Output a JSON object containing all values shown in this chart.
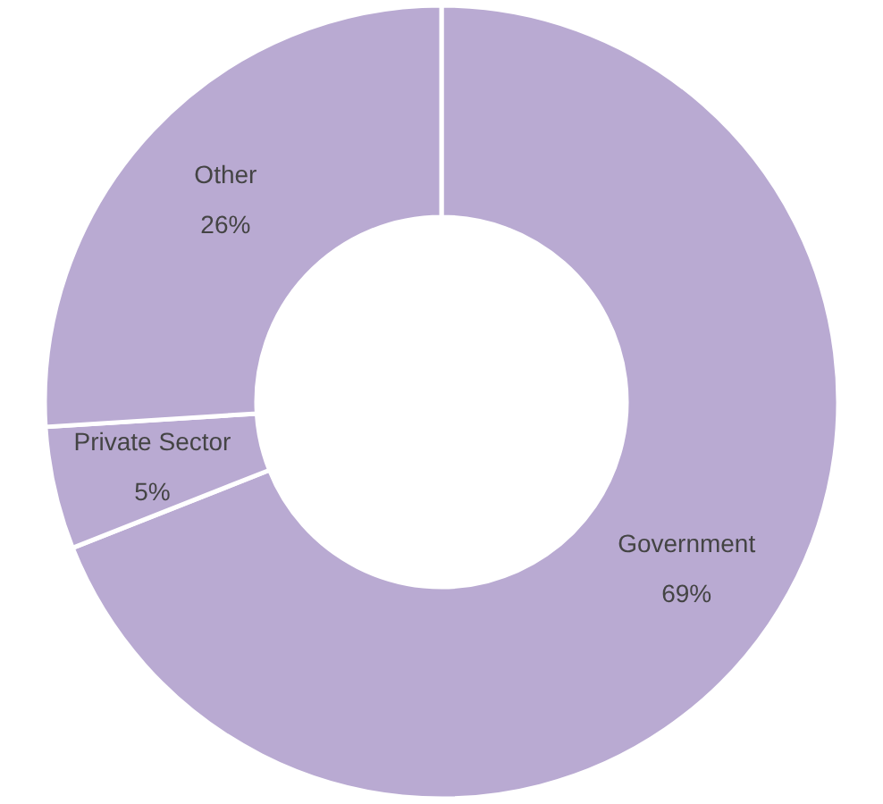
{
  "chart_data": {
    "type": "donut",
    "categories": [
      "Government",
      "Private Sector",
      "Other"
    ],
    "values": [
      69,
      5,
      26
    ],
    "colors": [
      "#b9aad2",
      "#b9aad2",
      "#b9aad2"
    ],
    "value_labels": [
      "69%",
      "5%",
      "26%"
    ],
    "legend": false
  }
}
